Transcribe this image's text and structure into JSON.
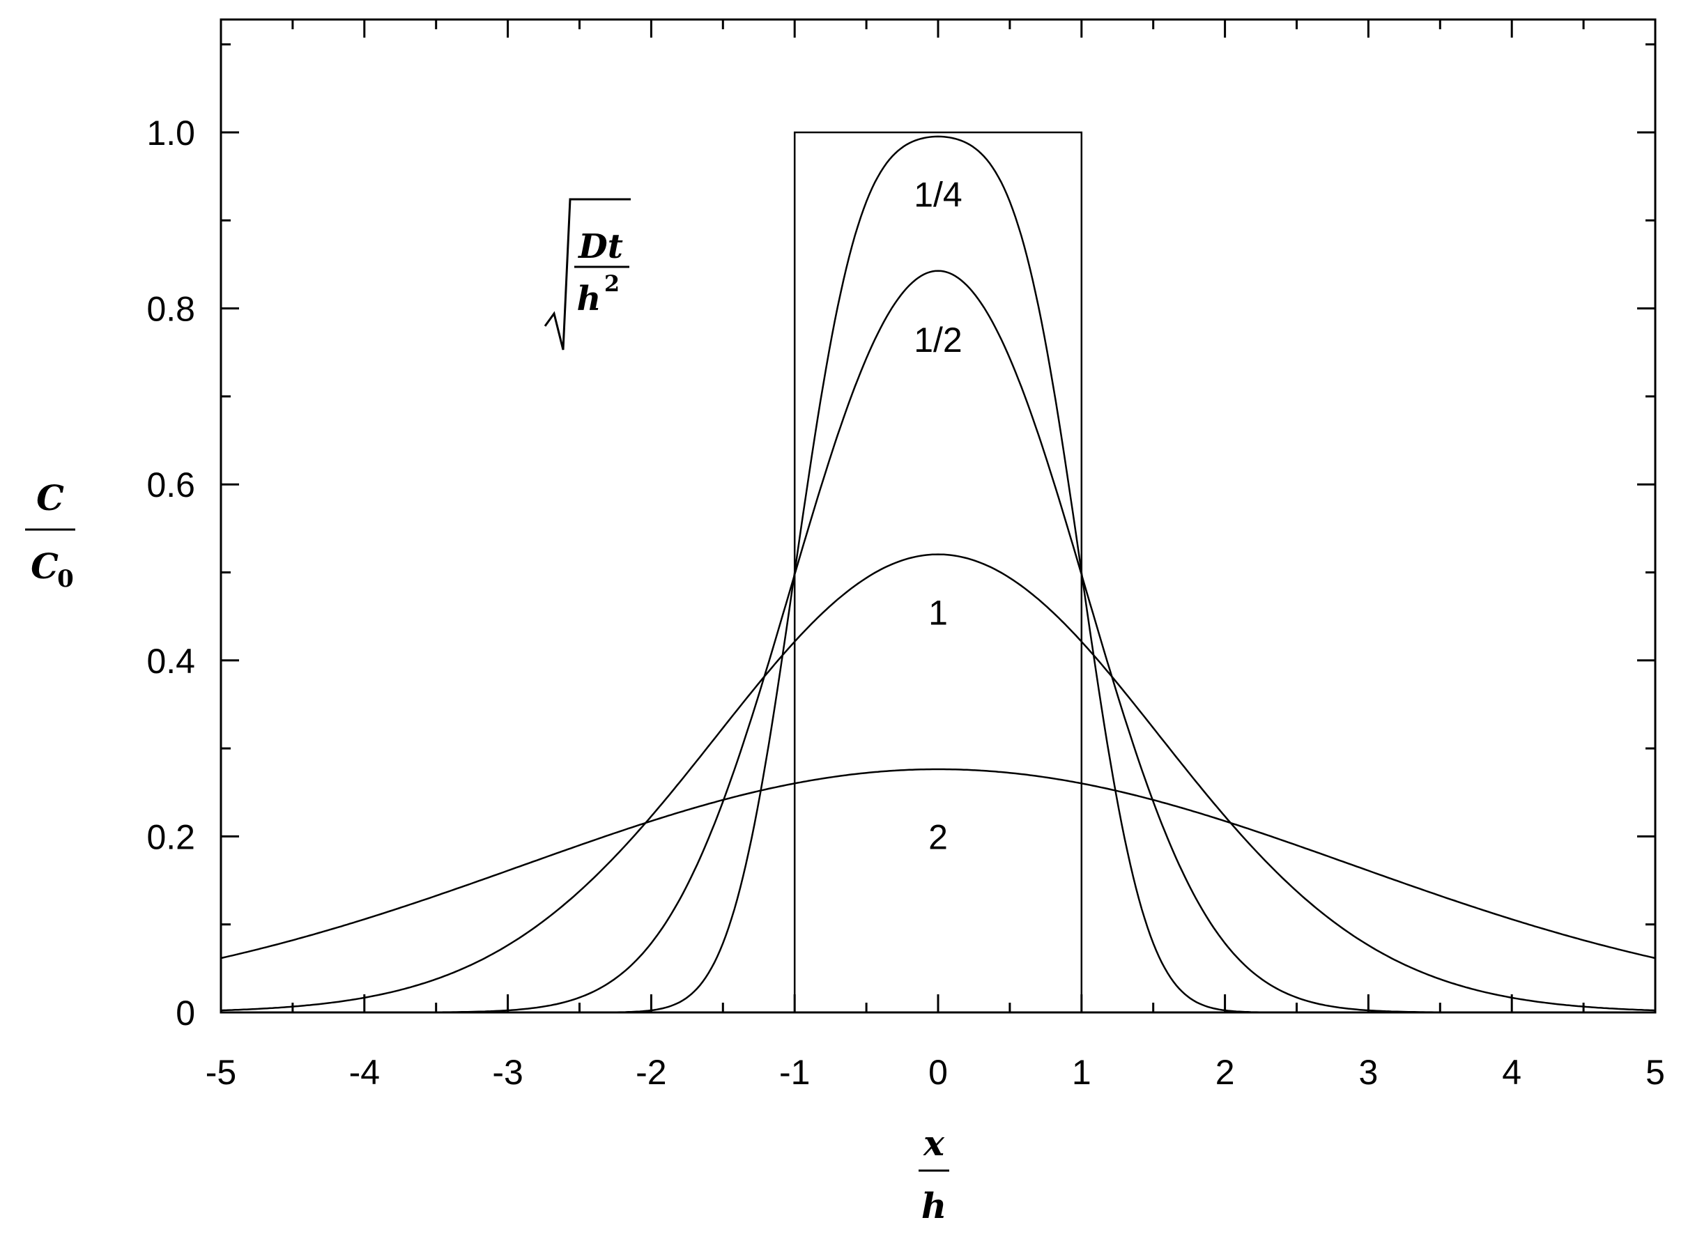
{
  "chart_data": {
    "type": "line",
    "xlim": [
      -5,
      5
    ],
    "ylim": [
      0,
      1.2
    ],
    "x_ticks": [
      "-5",
      "-4",
      "-3",
      "-2",
      "-1",
      "0",
      "1",
      "2",
      "3",
      "4",
      "5"
    ],
    "y_ticks": [
      "0",
      "0.2",
      "0.4",
      "0.6",
      "0.8",
      "1.0"
    ],
    "y_tick_values": [
      0,
      0.2,
      0.4,
      0.6,
      0.8,
      1.0
    ],
    "xlabel": {
      "numerator": "x",
      "denominator": "h"
    },
    "ylabel": {
      "numerator": "C",
      "denominator": "C",
      "subscript": "0"
    },
    "legend_title": {
      "numerator": "Dt",
      "denominator": "h",
      "exponent": "2"
    },
    "initial_profile": {
      "x": [
        -5,
        -1,
        -1,
        1,
        1,
        5
      ],
      "y": [
        0,
        0,
        1,
        1,
        0,
        0
      ]
    },
    "series": [
      {
        "name": "1/4",
        "param": 0.25,
        "peak": 0.995,
        "label_at": [
          0,
          0.93
        ]
      },
      {
        "name": "1/2",
        "param": 0.5,
        "peak": 0.843,
        "label_at": [
          0,
          0.765
        ]
      },
      {
        "name": "1",
        "param": 1.0,
        "peak": 0.52,
        "label_at": [
          0,
          0.455
        ]
      },
      {
        "name": "2",
        "param": 2.0,
        "peak": 0.276,
        "label_at": [
          0,
          0.2
        ]
      }
    ],
    "grid": false,
    "legend": "top-left"
  }
}
